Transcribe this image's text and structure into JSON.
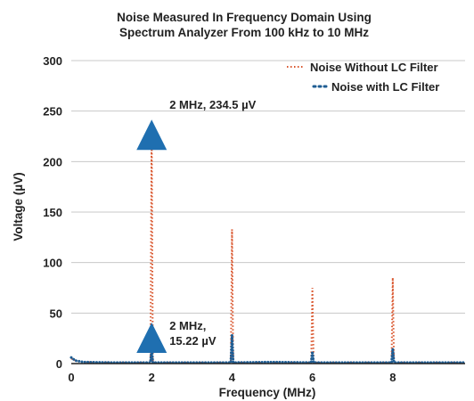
{
  "chart_data": {
    "type": "line",
    "title_lines": [
      "Noise Measured In Frequency Domain Using",
      "Spectrum Analyzer From 100 kHz to 10 MHz"
    ],
    "xlabel": "Frequency (MHz)",
    "ylabel": "Voltage (µV)",
    "xlim": [
      0,
      9.8
    ],
    "ylim": [
      0,
      300
    ],
    "xticks": [
      0,
      2,
      4,
      6,
      8
    ],
    "yticks": [
      0,
      50,
      100,
      150,
      200,
      250,
      300
    ],
    "grid": "horizontal",
    "legend_position": "top-right",
    "series": [
      {
        "name": "Noise Without LC Filter",
        "color": "#d9542b",
        "style": "dotted",
        "points": [
          [
            0.0,
            5
          ],
          [
            0.1,
            3
          ],
          [
            0.3,
            1.5
          ],
          [
            1.0,
            1
          ],
          [
            1.97,
            1
          ],
          [
            2.0,
            234.5
          ],
          [
            2.03,
            1
          ],
          [
            3.97,
            1
          ],
          [
            4.0,
            133
          ],
          [
            4.03,
            1
          ],
          [
            5.97,
            1
          ],
          [
            6.0,
            75
          ],
          [
            6.03,
            1
          ],
          [
            7.97,
            1
          ],
          [
            8.0,
            85
          ],
          [
            8.03,
            1
          ],
          [
            9.8,
            1
          ]
        ]
      },
      {
        "name": "Noise with LC Filter",
        "color": "#1f5d93",
        "style": "dotted",
        "points": [
          [
            0.0,
            6
          ],
          [
            0.1,
            3
          ],
          [
            0.3,
            1.5
          ],
          [
            1.0,
            1
          ],
          [
            1.97,
            1
          ],
          [
            2.0,
            15.22
          ],
          [
            2.03,
            1
          ],
          [
            3.97,
            1
          ],
          [
            4.0,
            28
          ],
          [
            4.03,
            1
          ],
          [
            5.0,
            1.5
          ],
          [
            5.97,
            1
          ],
          [
            6.0,
            12
          ],
          [
            6.03,
            1
          ],
          [
            7.97,
            1
          ],
          [
            8.0,
            15
          ],
          [
            8.03,
            1
          ],
          [
            9.8,
            1
          ]
        ]
      }
    ],
    "annotations": [
      {
        "lines": [
          "2 MHz, 234.5 µV"
        ],
        "x": 2,
        "y": 234.5,
        "marker": "triangle",
        "color": "#1f6fb0"
      },
      {
        "lines": [
          "2 MHz,",
          "15.22 µV"
        ],
        "x": 2,
        "y": 15.22,
        "marker": "triangle",
        "color": "#1f6fb0"
      }
    ]
  }
}
